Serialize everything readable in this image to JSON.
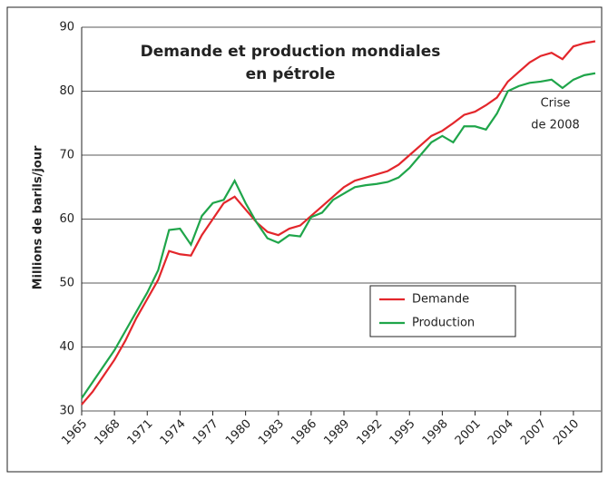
{
  "chart_data": {
    "type": "line",
    "title": [
      "Demande et production mondiales",
      "en pétrole"
    ],
    "y_label": "Millions de barils/jour",
    "annotation": [
      "Crise",
      "de 2008"
    ],
    "x": [
      1965,
      1966,
      1967,
      1968,
      1969,
      1970,
      1971,
      1972,
      1973,
      1974,
      1975,
      1976,
      1977,
      1978,
      1979,
      1980,
      1981,
      1982,
      1983,
      1984,
      1985,
      1986,
      1987,
      1988,
      1989,
      1990,
      1991,
      1992,
      1993,
      1994,
      1995,
      1996,
      1997,
      1998,
      1999,
      2000,
      2001,
      2002,
      2003,
      2004,
      2005,
      2006,
      2007,
      2008,
      2009,
      2010,
      2011,
      2012
    ],
    "series": [
      {
        "name": "Demande",
        "color": "#e3262b",
        "values": [
          31,
          33,
          35.5,
          38,
          41,
          44.5,
          47.5,
          50.5,
          55,
          54.5,
          54.3,
          57.5,
          60,
          62.5,
          63.5,
          61.5,
          59.5,
          58,
          57.5,
          58.5,
          59,
          60.5,
          62,
          63.5,
          65,
          66,
          66.5,
          67,
          67.5,
          68.5,
          70,
          71.5,
          73,
          73.8,
          75,
          76.3,
          76.8,
          77.8,
          79,
          81.5,
          83,
          84.5,
          85.5,
          86,
          85,
          87,
          87.5,
          87.8
        ]
      },
      {
        "name": "Production",
        "color": "#1fa54a",
        "values": [
          32,
          34.5,
          37,
          39.5,
          42.5,
          45.5,
          48.5,
          52,
          58.3,
          58.5,
          56,
          60.5,
          62.5,
          63,
          66,
          62.5,
          59.5,
          57,
          56.3,
          57.5,
          57.3,
          60.3,
          61,
          63,
          64,
          65,
          65.3,
          65.5,
          65.8,
          66.5,
          68,
          70,
          72,
          73,
          72,
          74.5,
          74.5,
          74,
          76.5,
          80,
          80.8,
          81.3,
          81.5,
          81.8,
          80.5,
          81.8,
          82.5,
          82.8
        ]
      }
    ],
    "xlim": [
      1965,
      2012.5
    ],
    "xticks": [
      1965,
      1968,
      1971,
      1974,
      1977,
      1980,
      1983,
      1986,
      1989,
      1992,
      1995,
      1998,
      2001,
      2004,
      2007,
      2010
    ],
    "ylim": [
      30,
      90
    ],
    "yticks": [
      30,
      40,
      50,
      60,
      70,
      80,
      90
    ],
    "grid": true
  }
}
